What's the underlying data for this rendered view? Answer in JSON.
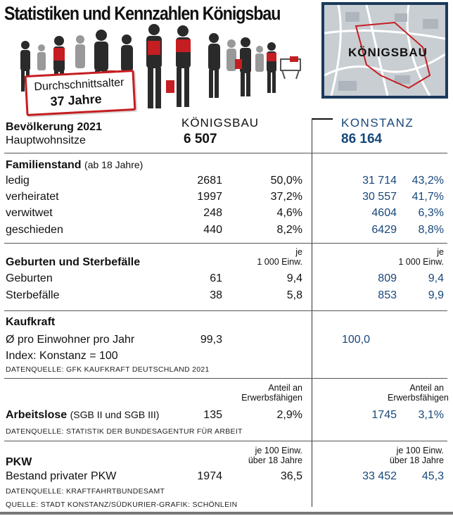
{
  "title": "Statistiken und Kennzahlen Königsbau",
  "age_box": {
    "line1": "Durchschnittsalter",
    "line2": "37 Jahre"
  },
  "map": {
    "label": "KÖNIGSBAU"
  },
  "colors": {
    "accent_red": "#c51e22",
    "konstanz_blue": "#17477a",
    "map_bg": "#1b3a5c"
  },
  "population": {
    "label": "Bevölkerung 2021",
    "sublabel": "Hauptwohnsitze",
    "koenigsbau_header": "KÖNIGSBAU",
    "koenigsbau_value": "6 507",
    "konstanz_header": "KONSTANZ",
    "konstanz_value": "86 164"
  },
  "familienstand": {
    "heading": "Familienstand",
    "heading_note": "(ab 18 Jahre)",
    "rows": [
      {
        "label": "ledig",
        "k_abs": "2681",
        "k_pct": "50,0%",
        "kn_abs": "31 714",
        "kn_pct": "43,2%"
      },
      {
        "label": "verheiratet",
        "k_abs": "1997",
        "k_pct": "37,2%",
        "kn_abs": "30 557",
        "kn_pct": "41,7%"
      },
      {
        "label": "verwitwet",
        "k_abs": "248",
        "k_pct": "4,6%",
        "kn_abs": "4604",
        "kn_pct": "6,3%"
      },
      {
        "label": "geschieden",
        "k_abs": "440",
        "k_pct": "8,2%",
        "kn_abs": "6429",
        "kn_pct": "8,8%"
      }
    ]
  },
  "geburten": {
    "heading": "Geburten und Sterbefälle",
    "unit_line1": "je",
    "unit_line2": "1 000 Einw.",
    "rows": [
      {
        "label": "Geburten",
        "k_abs": "61",
        "k_rate": "9,4",
        "kn_abs": "809",
        "kn_rate": "9,4"
      },
      {
        "label": "Sterbefälle",
        "k_abs": "38",
        "k_rate": "5,8",
        "kn_abs": "853",
        "kn_rate": "9,9"
      }
    ]
  },
  "kaufkraft": {
    "heading": "Kaufkraft",
    "row_label": "Ø pro Einwohner pro Jahr",
    "k_value": "99,3",
    "kn_value": "100,0",
    "index_note": "Index: Konstanz = 100",
    "source": "DATENQUELLE: GFK KAUFKRAFT DEUTSCHLAND 2021"
  },
  "arbeitslose": {
    "heading": "Arbeitslose",
    "heading_note": "(SGB II und SGB III)",
    "unit_line1": "Anteil an",
    "unit_line2": "Erwerbsfähigen",
    "k_abs": "135",
    "k_pct": "2,9%",
    "kn_abs": "1745",
    "kn_pct": "3,1%",
    "source": "DATENQUELLE: STATISTIK DER BUNDESAGENTUR FÜR ARBEIT"
  },
  "pkw": {
    "heading": "PKW",
    "row_label": "Bestand privater PKW",
    "unit_line1": "je 100 Einw.",
    "unit_line2": "über 18 Jahre",
    "k_abs": "1974",
    "k_rate": "36,5",
    "kn_abs": "33 452",
    "kn_rate": "45,3",
    "source": "DATENQUELLE: KRAFTFAHRTBUNDESAMT"
  },
  "footer_source": "QUELLE: STADT KONSTANZ/SÜDKURIER-GRAFIK: SCHÖNLEIN"
}
